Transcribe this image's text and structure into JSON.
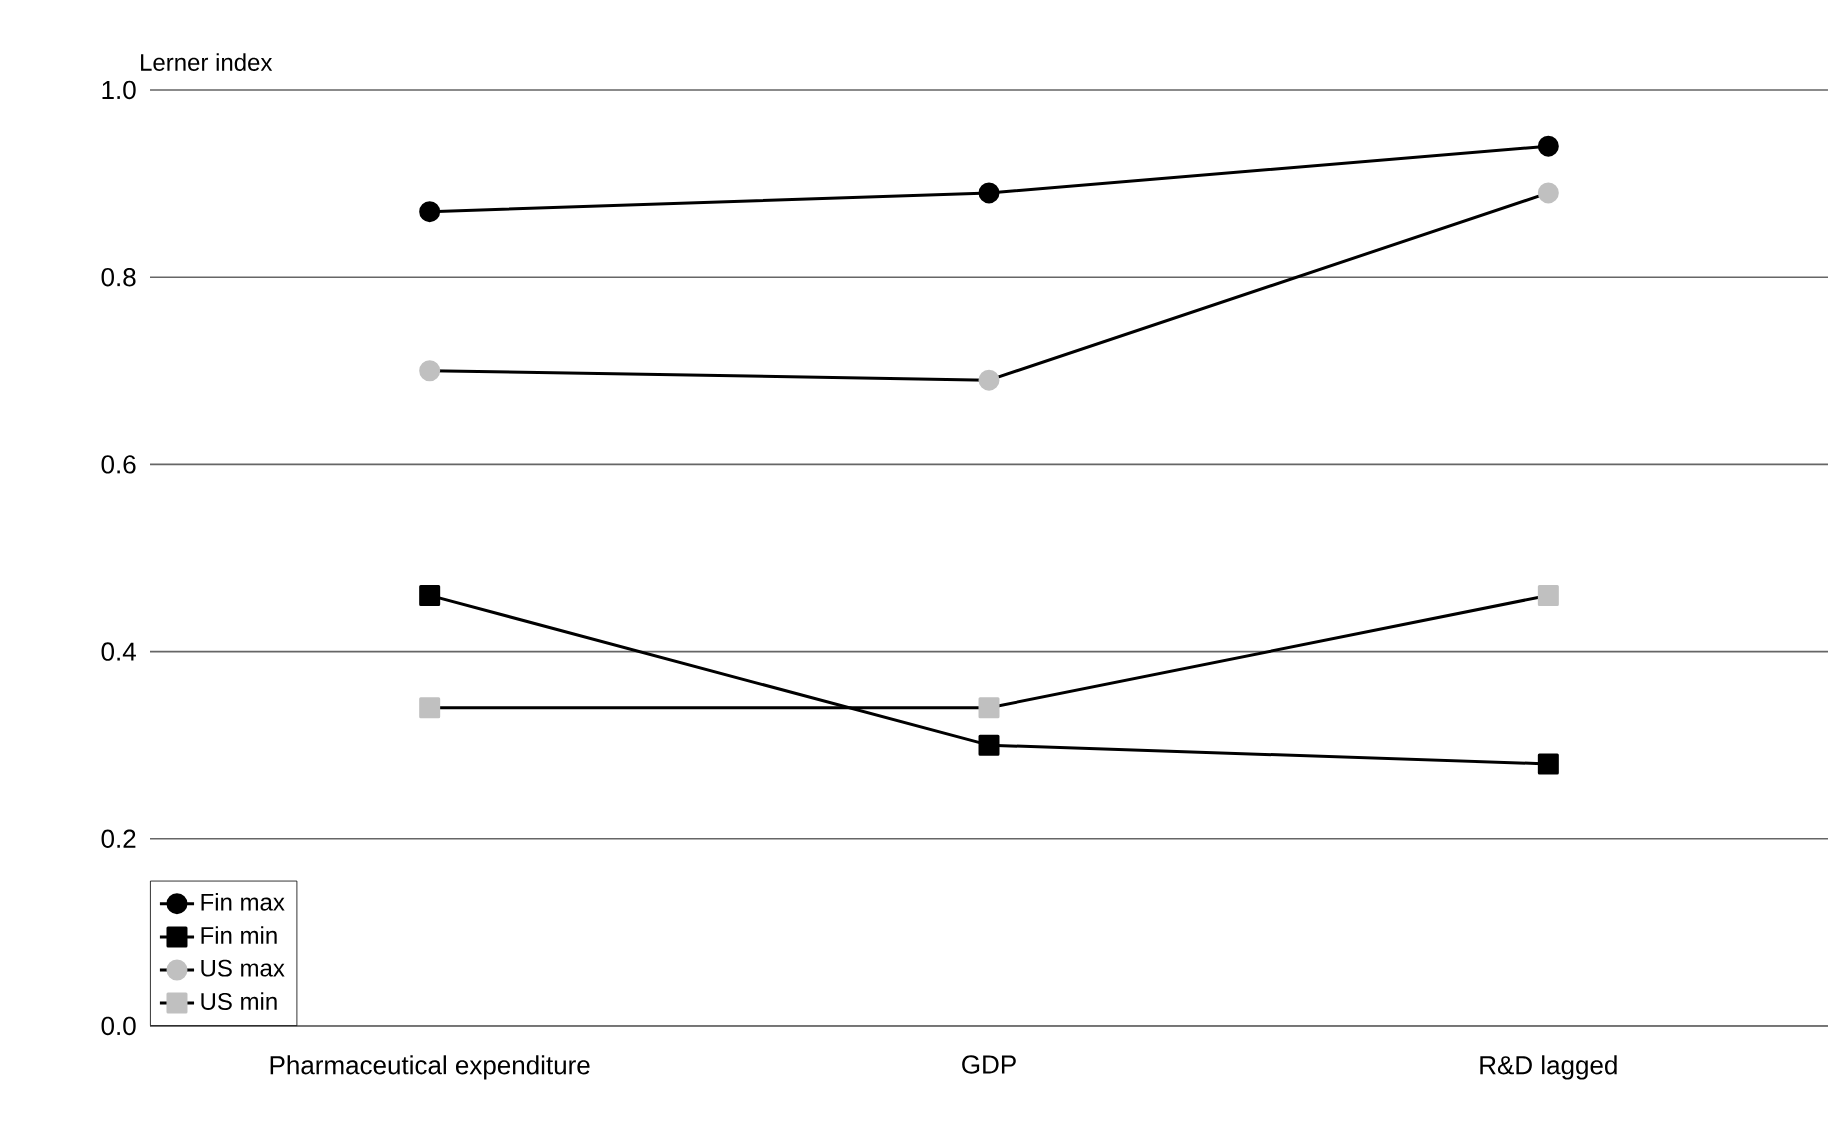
{
  "chart_data": {
    "type": "line",
    "ylabel": "Lerner index",
    "categories": [
      "Pharmaceutical expenditure",
      "GDP",
      "R&D lagged"
    ],
    "series": [
      {
        "name": "Fin max",
        "color": "#000000",
        "marker": "circle",
        "values": [
          0.87,
          0.89,
          0.94
        ]
      },
      {
        "name": "Fin min",
        "color": "#000000",
        "marker": "square",
        "values": [
          0.46,
          0.3,
          0.28
        ]
      },
      {
        "name": "US max",
        "color": "#c0c0c0",
        "marker": "circle",
        "values": [
          0.7,
          0.69,
          0.89
        ]
      },
      {
        "name": "US min",
        "color": "#c0c0c0",
        "marker": "square",
        "values": [
          0.34,
          0.34,
          0.46
        ]
      }
    ],
    "ylim": [
      0,
      1
    ],
    "yticks": [
      {
        "value": 0,
        "label": "0.0"
      },
      {
        "value": 0.2,
        "label": "0.2"
      },
      {
        "value": 0.4,
        "label": "0.4"
      },
      {
        "value": 0.6,
        "label": "0.6"
      },
      {
        "value": 0.8,
        "label": "0.8"
      },
      {
        "value": 1,
        "label": "1.0"
      }
    ],
    "grid": "y",
    "legend": "bottom left"
  }
}
